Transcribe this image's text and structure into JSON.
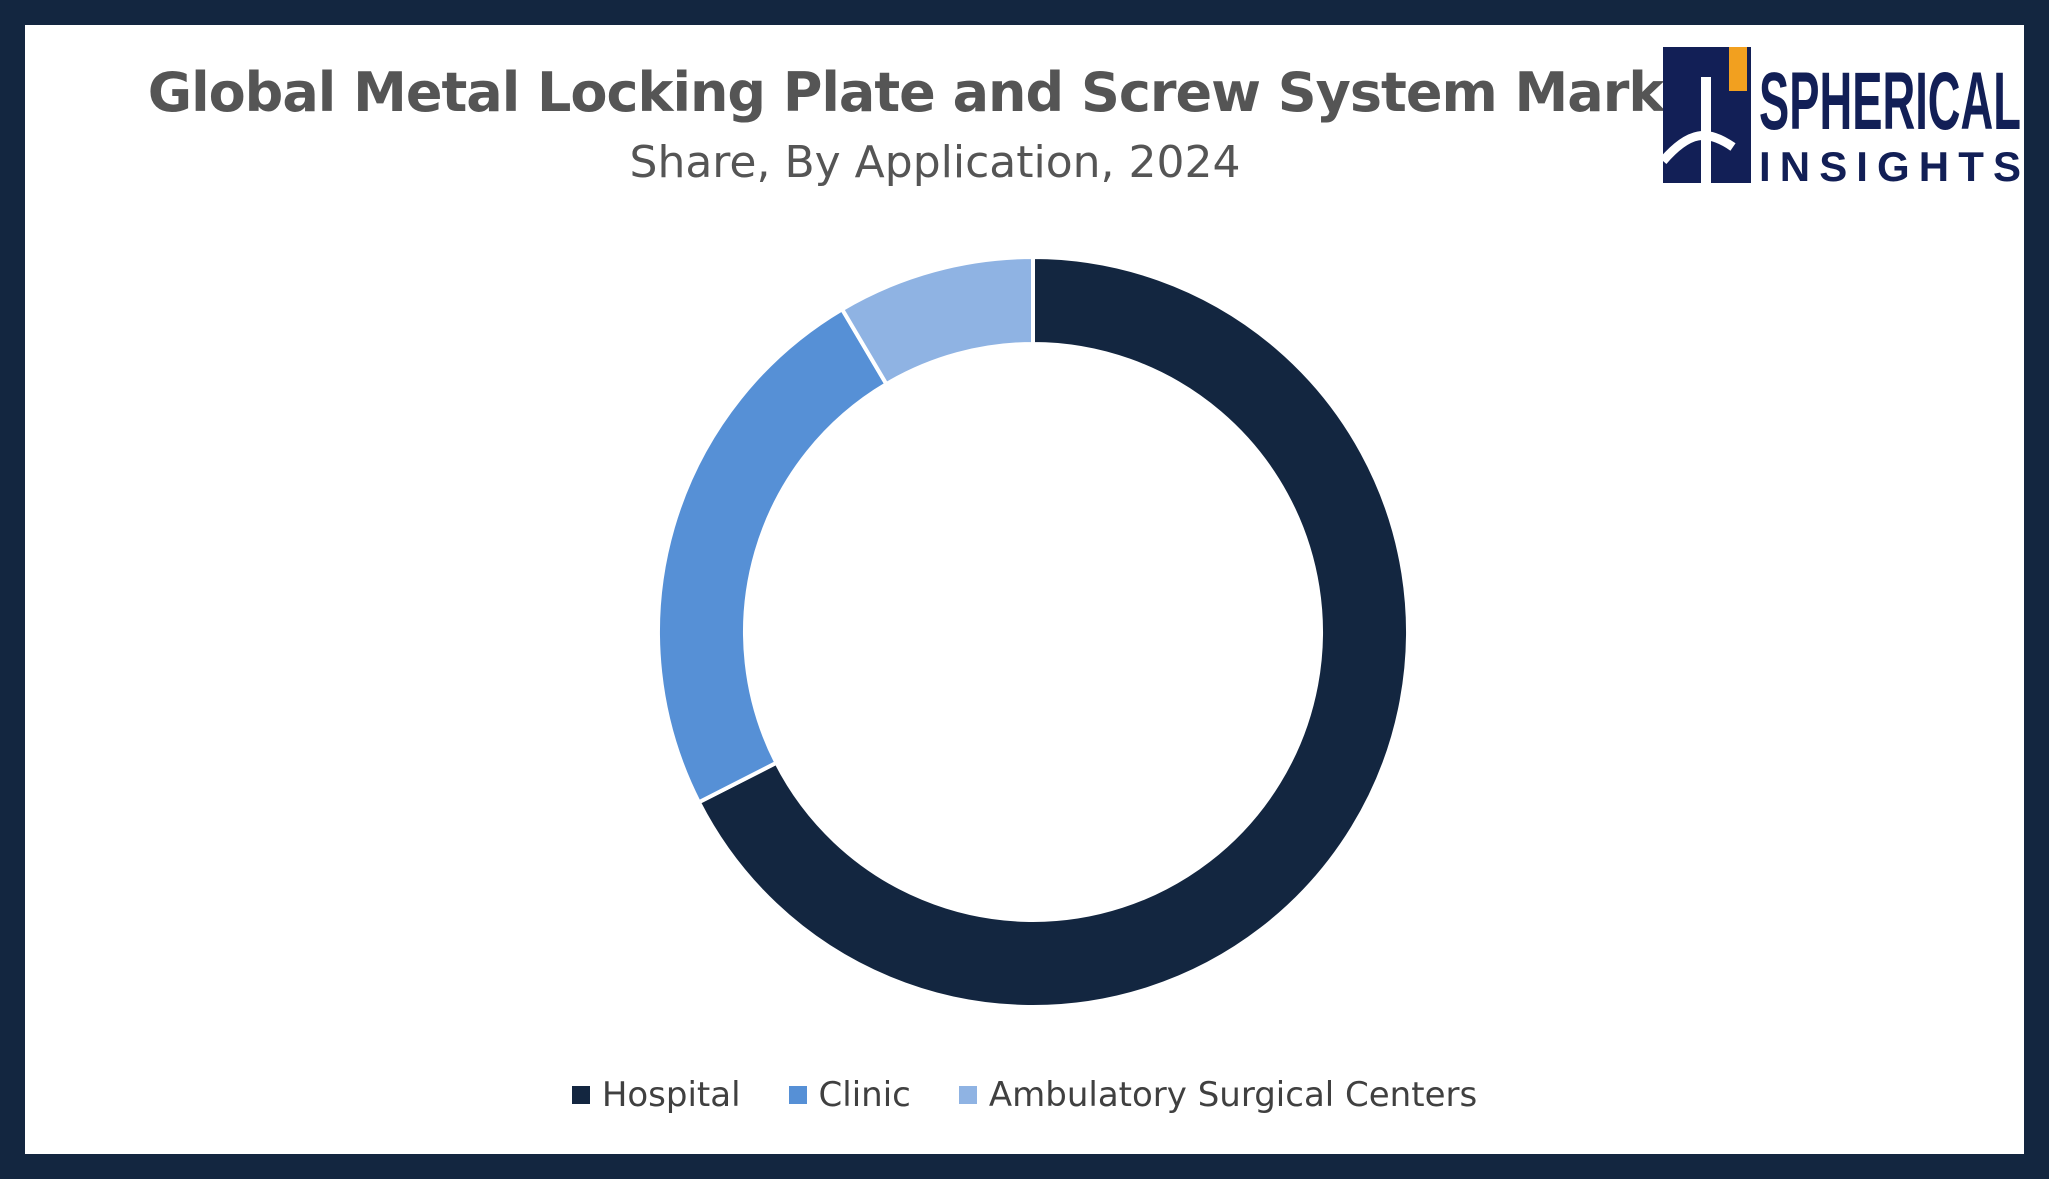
{
  "chart_data": {
    "type": "pie",
    "title": "Global Metal Locking Plate and Screw System Market",
    "subtitle": "Share, By Application, 2024",
    "donut": true,
    "legend_position": "bottom",
    "categories": [
      "Hospital",
      "Clinic",
      "Ambulatory Surgical Centers"
    ],
    "values": [
      67.5,
      24,
      8.5
    ],
    "colors": [
      "#132640",
      "#5690d6",
      "#8fb3e3"
    ]
  },
  "logo": {
    "text_main": "SPHERICAL",
    "text_sub": "INSIGHTS",
    "colors": {
      "navy": "#121f56",
      "orange": "#f2a01f"
    }
  },
  "colors": {
    "frame": "#132640",
    "background": "#ffffff",
    "separator": "#ffffff"
  }
}
